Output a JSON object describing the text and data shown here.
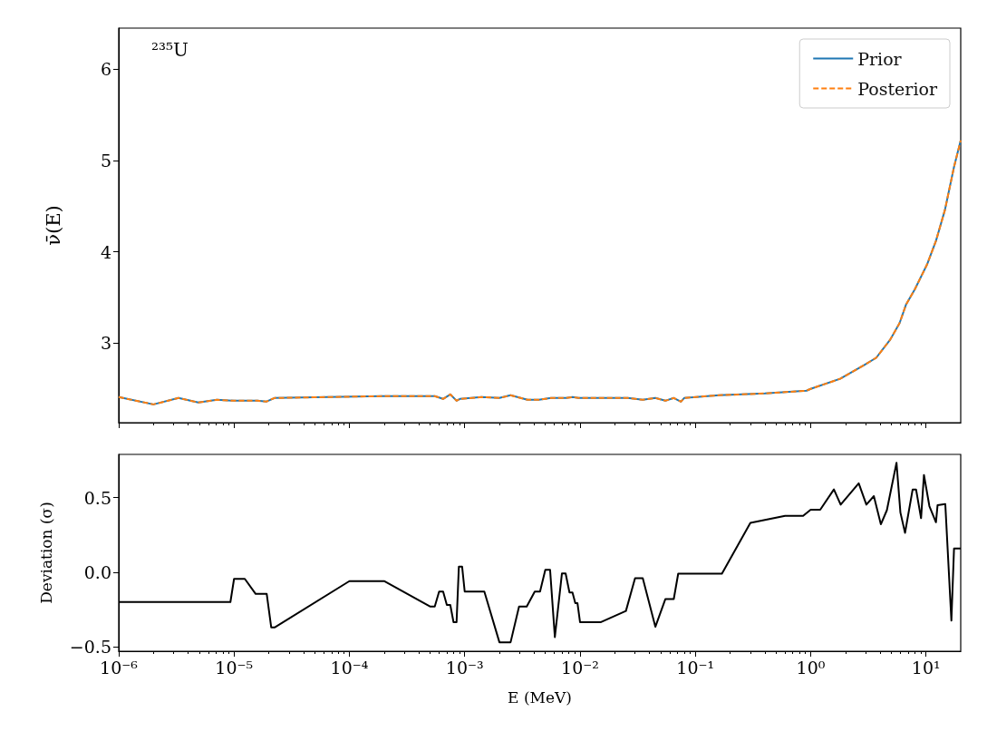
{
  "chart_data": [
    {
      "type": "line",
      "ylabel": "ν̄(E)",
      "annotations": [
        "²³⁵U"
      ],
      "legend": "top right",
      "log": "x",
      "tick_labels": "y",
      "xlim": [
        1e-06,
        20
      ],
      "ylim": [
        2.13,
        6.45
      ],
      "xticks": [
        {
          "value": 1e-06,
          "label": null
        },
        {
          "value": 1e-05,
          "label": null
        },
        {
          "value": 0.0001,
          "label": null
        },
        {
          "value": 0.001,
          "label": null
        },
        {
          "value": 0.01,
          "label": null
        },
        {
          "value": 0.1,
          "label": null
        },
        {
          "value": 1,
          "label": null
        },
        {
          "value": 10,
          "label": null
        }
      ],
      "yticks": [
        3,
        4,
        5,
        6
      ],
      "x": [
        1e-06,
        2e-06,
        3.3e-06,
        4.9e-06,
        7.1e-06,
        1e-05,
        1.6e-05,
        1.9e-05,
        2.24e-05,
        0.00019,
        0.00055,
        0.00065,
        0.00075,
        0.00085,
        0.00091,
        0.0014,
        0.002,
        0.0025,
        0.0035,
        0.0044,
        0.0056,
        0.0076,
        0.0086,
        0.0097,
        0.026,
        0.035,
        0.045,
        0.055,
        0.065,
        0.075,
        0.08,
        0.16,
        0.4,
        0.92,
        1.0,
        1.8,
        2.9,
        3.7,
        4.9,
        5.9,
        6.7,
        8.0,
        10.2,
        12.2,
        14.6,
        17.5,
        20
      ],
      "series": [
        {
          "name": "Prior",
          "color": "#1f77b4",
          "line_style": "solid",
          "values": [
            2.41,
            2.33,
            2.4,
            2.35,
            2.38,
            2.37,
            2.37,
            2.36,
            2.4,
            2.42,
            2.42,
            2.39,
            2.44,
            2.37,
            2.39,
            2.41,
            2.4,
            2.43,
            2.38,
            2.38,
            2.4,
            2.4,
            2.41,
            2.4,
            2.4,
            2.38,
            2.4,
            2.37,
            2.4,
            2.36,
            2.4,
            2.43,
            2.45,
            2.48,
            2.5,
            2.61,
            2.76,
            2.84,
            3.04,
            3.22,
            3.42,
            3.59,
            3.86,
            4.12,
            4.46,
            4.93,
            5.22
          ]
        },
        {
          "name": "Posterior",
          "color": "#ff7f0e",
          "line_style": "dashed",
          "values": [
            2.41,
            2.33,
            2.4,
            2.35,
            2.38,
            2.37,
            2.37,
            2.36,
            2.4,
            2.42,
            2.42,
            2.39,
            2.44,
            2.37,
            2.39,
            2.41,
            2.4,
            2.43,
            2.38,
            2.38,
            2.4,
            2.4,
            2.41,
            2.4,
            2.4,
            2.38,
            2.4,
            2.37,
            2.4,
            2.36,
            2.4,
            2.43,
            2.45,
            2.48,
            2.5,
            2.61,
            2.76,
            2.84,
            3.04,
            3.22,
            3.42,
            3.59,
            3.86,
            4.12,
            4.46,
            4.93,
            5.22
          ]
        }
      ]
    },
    {
      "type": "line",
      "xlabel": "E (MeV)",
      "ylabel": "Deviation (σ)",
      "log": "x",
      "xlim": [
        1e-06,
        20
      ],
      "ylim": [
        -0.53,
        0.79
      ],
      "xticks": [
        {
          "value": 1e-06,
          "label": "10⁻⁶"
        },
        {
          "value": 1e-05,
          "label": "10⁻⁵"
        },
        {
          "value": 0.0001,
          "label": "10⁻⁴"
        },
        {
          "value": 0.001,
          "label": "10⁻³"
        },
        {
          "value": 0.01,
          "label": "10⁻²"
        },
        {
          "value": 0.1,
          "label": "10⁻¹"
        },
        {
          "value": 1,
          "label": "10⁰"
        },
        {
          "value": 10,
          "label": "10¹"
        }
      ],
      "yticks": [
        {
          "value": -0.5,
          "label": "−0.5"
        },
        {
          "value": 0,
          "label": "0.0"
        },
        0.5
      ],
      "x": [
        1e-06,
        9.3e-06,
        1e-05,
        1.24e-05,
        1.54e-05,
        1.92e-05,
        2.1e-05,
        2.26e-05,
        0.0001,
        0.0002,
        0.0005,
        0.00055,
        0.0006,
        0.00065,
        0.0007,
        0.00075,
        0.0008,
        0.00085,
        0.00089,
        0.00095,
        0.001,
        0.00148,
        0.002,
        0.0025,
        0.00296,
        0.00345,
        0.00405,
        0.0045,
        0.005,
        0.0055,
        0.00605,
        0.00697,
        0.0075,
        0.0081,
        0.0086,
        0.0091,
        0.0095,
        0.01,
        0.0152,
        0.025,
        0.03,
        0.035,
        0.045,
        0.055,
        0.065,
        0.071,
        0.17,
        0.3,
        0.6,
        0.86,
        1.0,
        1.21,
        1.59,
        1.82,
        2.61,
        3.04,
        3.53,
        4.06,
        4.58,
        5.55,
        6.0,
        6.58,
        7.66,
        8.2,
        9.06,
        9.6,
        10.7,
        12.2,
        12.6,
        14.7,
        16.6,
        17.5,
        20
      ],
      "color": "#000000",
      "values": [
        -0.2,
        -0.2,
        -0.045,
        -0.045,
        -0.146,
        -0.146,
        -0.37,
        -0.37,
        -0.06,
        -0.06,
        -0.23,
        -0.23,
        -0.13,
        -0.13,
        -0.22,
        -0.22,
        -0.335,
        -0.335,
        0.037,
        0.037,
        -0.13,
        -0.13,
        -0.47,
        -0.47,
        -0.23,
        -0.23,
        -0.13,
        -0.13,
        0.016,
        0.016,
        -0.435,
        -0.008,
        -0.008,
        -0.136,
        -0.136,
        -0.207,
        -0.207,
        -0.335,
        -0.335,
        -0.26,
        -0.04,
        -0.04,
        -0.366,
        -0.18,
        -0.18,
        -0.01,
        -0.01,
        0.331,
        0.378,
        0.378,
        0.419,
        0.419,
        0.555,
        0.453,
        0.596,
        0.453,
        0.51,
        0.321,
        0.416,
        0.734,
        0.4,
        0.264,
        0.555,
        0.555,
        0.362,
        0.652,
        0.443,
        0.335,
        0.45,
        0.457,
        -0.325,
        0.159,
        0.159
      ]
    }
  ]
}
